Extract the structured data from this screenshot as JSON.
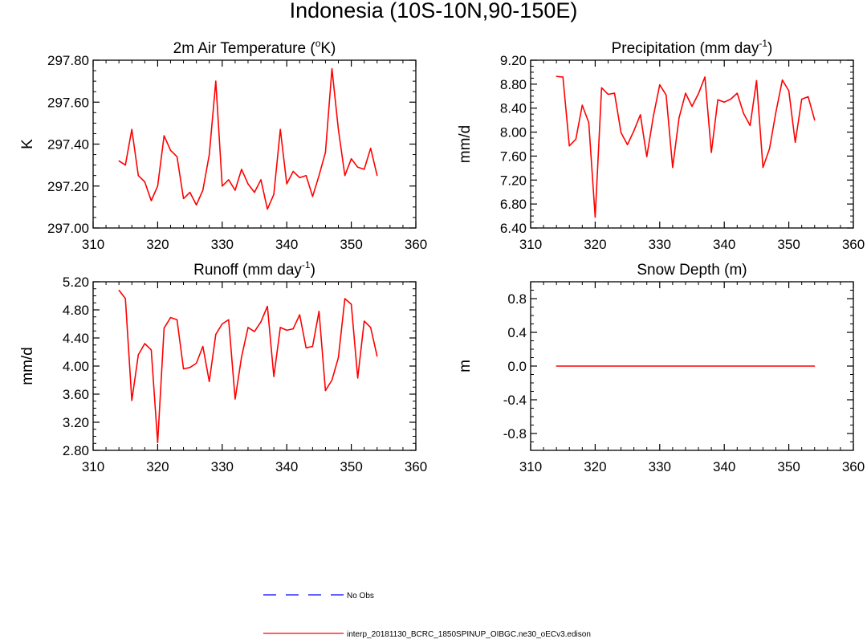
{
  "title": "Indonesia (10S-10N,90-150E)",
  "colors": {
    "model": "#ff0000",
    "obs": "#0000ff",
    "axis": "#000000"
  },
  "legend": {
    "obs_label": "No Obs",
    "model_label": "interp_20181130_BCRC_1850SPINUP_OIBGC.ne30_oECv3.edison"
  },
  "chart_data": [
    {
      "type": "line",
      "title": "2m Air Temperature (",
      "title_sup1": "o",
      "title_mid": "K)",
      "title_sup2": "",
      "title_end": "",
      "ylabel": "K",
      "xlim": [
        310,
        360
      ],
      "ylim": [
        297.0,
        297.8
      ],
      "xticks": [
        310,
        320,
        330,
        340,
        350,
        360
      ],
      "yticks": [
        "297.00",
        "297.20",
        "297.40",
        "297.60",
        "297.80"
      ],
      "ytick_values": [
        297.0,
        297.2,
        297.4,
        297.6,
        297.8
      ],
      "series": [
        {
          "name": "model",
          "x": [
            314,
            315,
            316,
            317,
            318,
            319,
            320,
            321,
            322,
            323,
            324,
            325,
            326,
            327,
            328,
            329,
            330,
            331,
            332,
            333,
            334,
            335,
            336,
            337,
            338,
            339,
            340,
            341,
            342,
            343,
            344,
            345,
            346,
            347,
            348,
            349,
            350,
            351,
            352,
            353,
            354
          ],
          "values": [
            297.32,
            297.3,
            297.47,
            297.25,
            297.22,
            297.13,
            297.2,
            297.44,
            297.37,
            297.34,
            297.14,
            297.17,
            297.11,
            297.18,
            297.35,
            297.7,
            297.2,
            297.23,
            297.18,
            297.28,
            297.21,
            297.17,
            297.23,
            297.09,
            297.16,
            297.47,
            297.21,
            297.27,
            297.24,
            297.25,
            297.15,
            297.25,
            297.36,
            297.76,
            297.47,
            297.25,
            297.33,
            297.29,
            297.28,
            297.38,
            297.25
          ]
        }
      ]
    },
    {
      "type": "line",
      "title": "Precipitation (mm day",
      "title_sup1": "-1",
      "title_mid": ")",
      "title_sup2": "",
      "title_end": "",
      "ylabel": "mm/d",
      "xlim": [
        310,
        360
      ],
      "ylim": [
        6.4,
        9.2
      ],
      "xticks": [
        310,
        320,
        330,
        340,
        350,
        360
      ],
      "yticks": [
        "6.40",
        "6.80",
        "7.20",
        "7.60",
        "8.00",
        "8.40",
        "8.80",
        "9.20"
      ],
      "ytick_values": [
        6.4,
        6.8,
        7.2,
        7.6,
        8.0,
        8.4,
        8.8,
        9.2
      ],
      "series": [
        {
          "name": "model",
          "x": [
            314,
            315,
            316,
            317,
            318,
            319,
            320,
            321,
            322,
            323,
            324,
            325,
            326,
            327,
            328,
            329,
            330,
            331,
            332,
            333,
            334,
            335,
            336,
            337,
            338,
            339,
            340,
            341,
            342,
            343,
            344,
            345,
            346,
            347,
            348,
            349,
            350,
            351,
            352,
            353,
            354
          ],
          "values": [
            8.93,
            8.92,
            7.77,
            7.88,
            8.45,
            8.16,
            6.58,
            8.74,
            8.63,
            8.65,
            7.99,
            7.79,
            8.02,
            8.29,
            7.59,
            8.26,
            8.79,
            8.62,
            7.41,
            8.24,
            8.65,
            8.43,
            8.64,
            8.92,
            7.66,
            8.54,
            8.5,
            8.55,
            8.65,
            8.31,
            8.11,
            8.86,
            7.41,
            7.72,
            8.33,
            8.87,
            8.69,
            7.83,
            8.55,
            8.59,
            8.2
          ]
        }
      ]
    },
    {
      "type": "line",
      "title": "Runoff (mm day",
      "title_sup1": "-1",
      "title_mid": ")",
      "title_sup2": "",
      "title_end": "",
      "ylabel": "mm/d",
      "xlim": [
        310,
        360
      ],
      "ylim": [
        2.8,
        5.2
      ],
      "xticks": [
        310,
        320,
        330,
        340,
        350,
        360
      ],
      "yticks": [
        "2.80",
        "3.20",
        "3.60",
        "4.00",
        "4.40",
        "4.80",
        "5.20"
      ],
      "ytick_values": [
        2.8,
        3.2,
        3.6,
        4.0,
        4.4,
        4.8,
        5.2
      ],
      "series": [
        {
          "name": "model",
          "x": [
            314,
            315,
            316,
            317,
            318,
            319,
            320,
            321,
            322,
            323,
            324,
            325,
            326,
            327,
            328,
            329,
            330,
            331,
            332,
            333,
            334,
            335,
            336,
            337,
            338,
            339,
            340,
            341,
            342,
            343,
            344,
            345,
            346,
            347,
            348,
            349,
            350,
            351,
            352,
            353,
            354
          ],
          "values": [
            5.08,
            4.96,
            3.51,
            4.16,
            4.32,
            4.23,
            2.91,
            4.54,
            4.69,
            4.66,
            3.96,
            3.98,
            4.04,
            4.28,
            3.78,
            4.45,
            4.6,
            4.66,
            3.53,
            4.13,
            4.55,
            4.49,
            4.63,
            4.85,
            3.85,
            4.55,
            4.51,
            4.53,
            4.73,
            4.26,
            4.28,
            4.78,
            3.65,
            3.8,
            4.12,
            4.96,
            4.88,
            3.83,
            4.64,
            4.55,
            4.14
          ]
        }
      ]
    },
    {
      "type": "line",
      "title": "Snow Depth (m)",
      "title_sup1": "",
      "title_mid": "",
      "title_sup2": "",
      "title_end": "",
      "ylabel": "m",
      "xlim": [
        310,
        360
      ],
      "ylim": [
        -1.0,
        1.0
      ],
      "xticks": [
        310,
        320,
        330,
        340,
        350,
        360
      ],
      "yticks": [
        "-0.8",
        "-0.4",
        "0.0",
        "0.4",
        "0.8"
      ],
      "ytick_values": [
        -0.8,
        -0.4,
        0.0,
        0.4,
        0.8
      ],
      "series": [
        {
          "name": "model",
          "x": [
            314,
            354
          ],
          "values": [
            0.0,
            0.0
          ]
        }
      ]
    }
  ]
}
